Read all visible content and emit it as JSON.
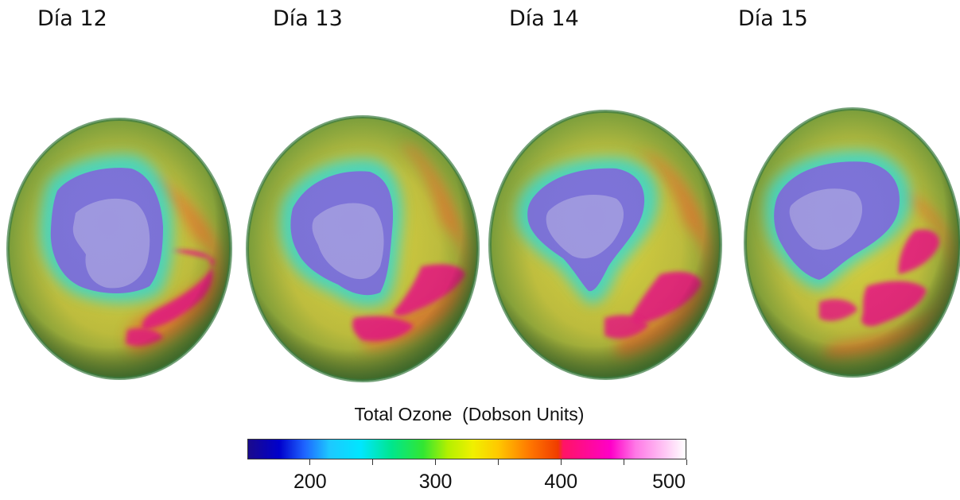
{
  "day_labels": [
    "Día 12",
    "Día 13",
    "Día 14",
    "Día 15"
  ],
  "legend": {
    "title": "Total Ozone  (Dobson Units)",
    "min": 150,
    "max": 500,
    "tick_values": [
      200,
      250,
      300,
      350,
      400,
      450,
      500
    ],
    "tick_labels": [
      {
        "value": 200,
        "text": "200"
      },
      {
        "value": 300,
        "text": "300"
      },
      {
        "value": 400,
        "text": "400"
      },
      {
        "value": 500,
        "text": "500"
      }
    ],
    "color_stops": [
      {
        "value": 150,
        "color": "#1a0a8c"
      },
      {
        "value": 175,
        "color": "#0000cc"
      },
      {
        "value": 195,
        "color": "#1e64ff"
      },
      {
        "value": 215,
        "color": "#1ec8ff"
      },
      {
        "value": 240,
        "color": "#00e6ff"
      },
      {
        "value": 265,
        "color": "#00e68c"
      },
      {
        "value": 290,
        "color": "#32e632"
      },
      {
        "value": 310,
        "color": "#b4f000"
      },
      {
        "value": 330,
        "color": "#f0f000"
      },
      {
        "value": 350,
        "color": "#ffc800"
      },
      {
        "value": 375,
        "color": "#ff7800"
      },
      {
        "value": 398,
        "color": "#f03c00"
      },
      {
        "value": 402,
        "color": "#ff1464"
      },
      {
        "value": 440,
        "color": "#ff00c8"
      },
      {
        "value": 460,
        "color": "#ff78e6"
      },
      {
        "value": 500,
        "color": "#ffffff"
      }
    ]
  },
  "colors": {
    "ozone_hole": "#7c72d8",
    "antarctica": "#a49ee0",
    "hole_ring": "#33d6ee",
    "background_field": "#c9c83a",
    "high_ozone": "#e82a8a",
    "high_ozone_edge": "#e85a3a",
    "limb": "#4a8a3a"
  }
}
